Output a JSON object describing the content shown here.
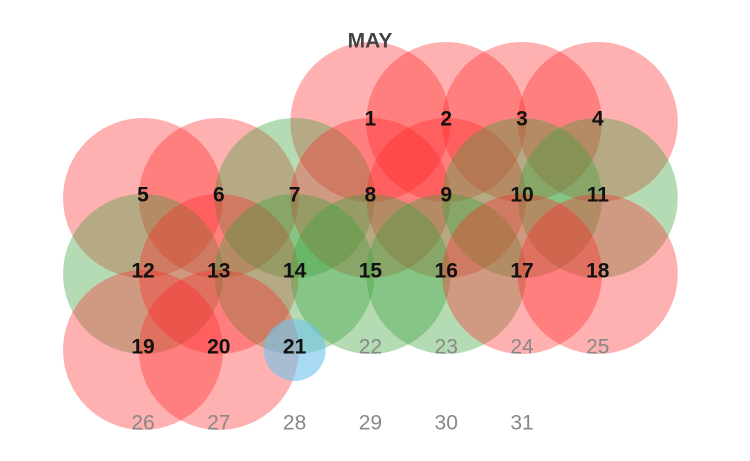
{
  "calendar": {
    "title": "MAY",
    "days": [
      {
        "label": "1",
        "color": "red"
      },
      {
        "label": "2",
        "color": "red"
      },
      {
        "label": "3",
        "color": "red"
      },
      {
        "label": "4",
        "color": "red"
      },
      {
        "label": "5",
        "color": "red"
      },
      {
        "label": "6",
        "color": "red"
      },
      {
        "label": "7",
        "color": "green"
      },
      {
        "label": "8",
        "color": "red"
      },
      {
        "label": "9",
        "color": "red"
      },
      {
        "label": "10",
        "color": "green"
      },
      {
        "label": "11",
        "color": "green"
      },
      {
        "label": "12",
        "color": "green"
      },
      {
        "label": "13",
        "color": "red"
      },
      {
        "label": "14",
        "color": "green"
      },
      {
        "label": "15",
        "color": "green"
      },
      {
        "label": "16",
        "color": "green"
      },
      {
        "label": "17",
        "color": "red"
      },
      {
        "label": "18",
        "color": "red"
      },
      {
        "label": "19",
        "color": "red"
      },
      {
        "label": "20",
        "color": "red"
      },
      {
        "label": "21",
        "color": "blue"
      },
      {
        "label": "22",
        "color": null
      },
      {
        "label": "23",
        "color": null
      },
      {
        "label": "24",
        "color": null
      },
      {
        "label": "25",
        "color": null
      },
      {
        "label": "26",
        "color": null
      },
      {
        "label": "27",
        "color": null
      },
      {
        "label": "28",
        "color": null
      },
      {
        "label": "29",
        "color": null
      },
      {
        "label": "30",
        "color": null
      },
      {
        "label": "31",
        "color": null
      }
    ]
  }
}
